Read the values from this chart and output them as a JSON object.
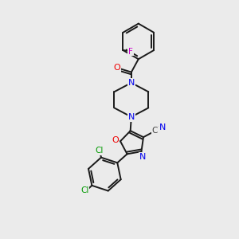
{
  "background_color": "#ebebeb",
  "figsize": [
    3.0,
    3.0
  ],
  "dpi": 100,
  "bond_color": "#1a1a1a",
  "bond_width": 1.4,
  "atom_colors": {
    "N": "#0000ee",
    "O": "#ee0000",
    "F": "#cc00cc",
    "Cl": "#009900",
    "C": "#444444"
  },
  "layout": {
    "scale": 10,
    "xlim": [
      0,
      10
    ],
    "ylim": [
      0,
      10
    ]
  }
}
